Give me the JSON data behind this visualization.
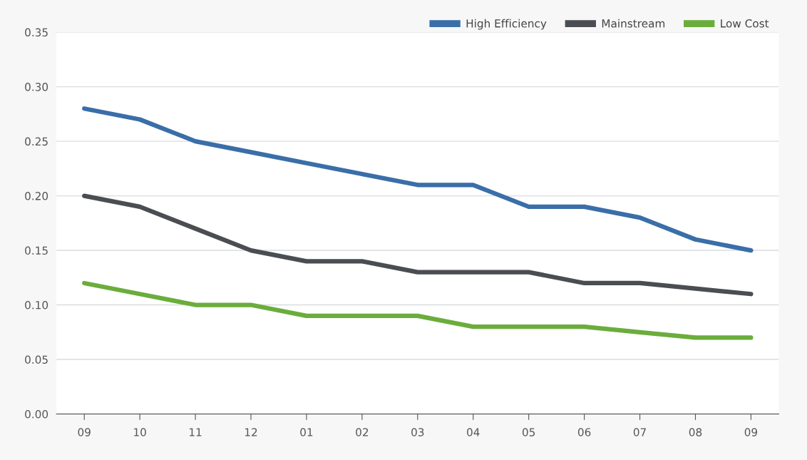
{
  "chart_data": {
    "type": "line",
    "categories": [
      "09",
      "10",
      "11",
      "12",
      "01",
      "02",
      "03",
      "04",
      "05",
      "06",
      "07",
      "08",
      "09"
    ],
    "series": [
      {
        "name": "High Efficiency",
        "color": "#3a6ea8",
        "values": [
          0.28,
          0.27,
          0.25,
          0.24,
          0.23,
          0.22,
          0.21,
          0.21,
          0.19,
          0.19,
          0.18,
          0.16,
          0.15
        ]
      },
      {
        "name": "Mainstream",
        "color": "#4a4d52",
        "values": [
          0.2,
          0.19,
          0.17,
          0.15,
          0.14,
          0.14,
          0.13,
          0.13,
          0.13,
          0.12,
          0.12,
          0.115,
          0.11
        ]
      },
      {
        "name": "Low Cost",
        "color": "#6aad3c",
        "values": [
          0.12,
          0.11,
          0.1,
          0.1,
          0.09,
          0.09,
          0.09,
          0.08,
          0.08,
          0.08,
          0.075,
          0.07,
          0.07
        ]
      }
    ],
    "ylim": [
      0,
      0.35
    ],
    "yticks": [
      {
        "value": 0,
        "label": "0.00"
      },
      {
        "value": 0.05,
        "label": "0.05"
      },
      {
        "value": 0.1,
        "label": "0.10"
      },
      {
        "value": 0.15,
        "label": "0.15"
      },
      {
        "value": 0.2,
        "label": "0.20"
      },
      {
        "value": 0.25,
        "label": "0.25"
      },
      {
        "value": 0.3,
        "label": "0.30"
      },
      {
        "value": 0.35,
        "label": "0.35"
      }
    ],
    "grid": "y",
    "legend": "top right",
    "marker": "none",
    "line_style": "solid"
  }
}
